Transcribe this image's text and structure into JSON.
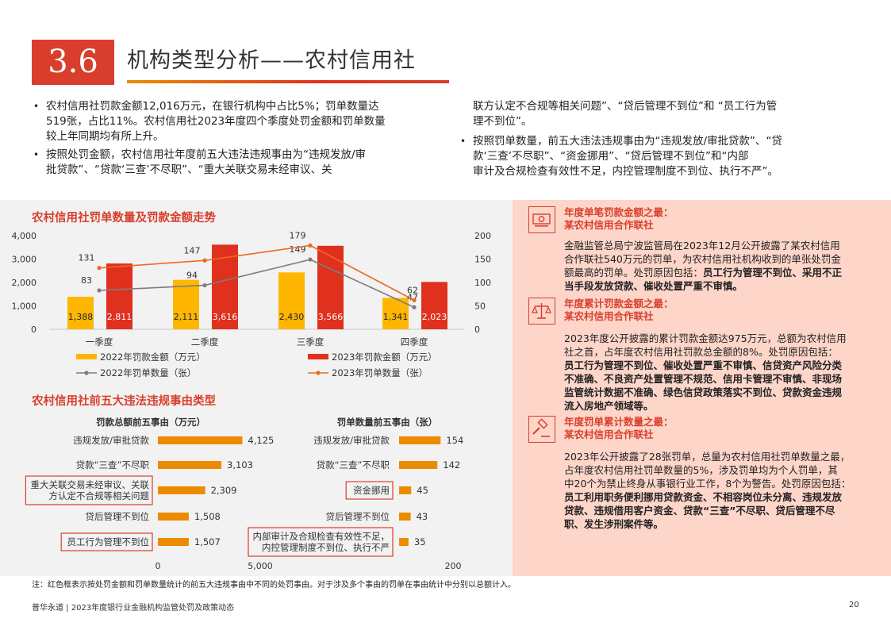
{
  "header": {
    "section_number": "3.6",
    "title": "机构类型分析——农村信用社"
  },
  "intro": {
    "left_bullets": [
      {
        "lines": [
          "农村信用社罚款金额12,016万元，在银行机构中占比5%；罚单数量达",
          "519张，占比11%。农村信用社2023年度四个季度处罚金额和罚单数量",
          "较上年同期均有所上升。"
        ]
      },
      {
        "lines": [
          "按照处罚金额，农村信用社年度前五大违法违规事由为“违规发放/审",
          "批贷款”、“贷款‘三查’不尽职”、“重大关联交易未经审议、关"
        ]
      }
    ],
    "right_continuation": [
      "联方认定不合规等相关问题”、“贷后管理不到位”和 “员工行为管",
      "理不到位”。"
    ],
    "right_bullets": [
      {
        "lines": [
          "按照罚单数量，前五大违法违规事由为“违规发放/审批贷款”、“贷",
          "款‘三查’不尽职”、“资金挪用”、“贷后管理不到位”和“内部",
          "审计及合规检查有效性不足，内控管理制度不到位、执行不严”。"
        ]
      }
    ]
  },
  "chart_data": [
    {
      "type": "bar",
      "title": "农村信用社罚单数量及罚款金额走势",
      "categories": [
        "一季度",
        "二季度",
        "三季度",
        "四季度"
      ],
      "y_left_ticks": [
        "4,000",
        "3,000",
        "2,000",
        "1,000",
        "0"
      ],
      "y_right_ticks": [
        "200",
        "150",
        "100",
        "50",
        "0"
      ],
      "ylim_left": [
        0,
        4000
      ],
      "ylim_right": [
        0,
        200
      ],
      "bar_series": [
        {
          "name": "2022年罚款金额（万元）",
          "color": "#ffb600",
          "values": [
            1388,
            2111,
            2430,
            1341
          ],
          "labels": [
            "1,388",
            "2,111",
            "2,430",
            "1,341"
          ]
        },
        {
          "name": "2023年罚款金额（万元）",
          "color": "#e0301e",
          "values": [
            2811,
            3616,
            3566,
            2023
          ],
          "labels": [
            "2,811",
            "3,616",
            "3,566",
            "2,023"
          ]
        }
      ],
      "line_series": [
        {
          "name": "2022年罚单数量（张）",
          "color": "#7d7d7d",
          "values": [
            83,
            94,
            149,
            47
          ]
        },
        {
          "name": "2023年罚单数量（张）",
          "color": "#eb6a1e",
          "values": [
            131,
            147,
            179,
            62
          ]
        }
      ],
      "legend": "bottom"
    },
    {
      "type": "bar",
      "title": "罚款总额前五事由（万元）",
      "orientation": "horizontal",
      "color": "#eb8c00",
      "categories": [
        "违规发放/审批贷款",
        "贷款“三查”不尽职",
        "重大关联交易未经审议、关联方认定不合规等相关问题",
        "贷后管理不到位",
        "员工行为管理不到位"
      ],
      "category_lines": [
        [
          "违规发放/审批贷款"
        ],
        [
          "贷款“三查”不尽职"
        ],
        [
          "重大关联交易未经审议、关联",
          "方认定不合规等相关问题"
        ],
        [
          "贷后管理不到位"
        ],
        [
          "员工行为管理不到位"
        ]
      ],
      "boxed": [
        false,
        false,
        true,
        false,
        true
      ],
      "values": [
        4125,
        3103,
        2309,
        1508,
        1507
      ],
      "labels": [
        "4,125",
        "3,103",
        "2,309",
        "1,508",
        "1,507"
      ],
      "xlim": [
        0,
        5000
      ],
      "x_ticks": [
        "0",
        "5,000"
      ]
    },
    {
      "type": "bar",
      "title": "罚单数量前五事由（张）",
      "orientation": "horizontal",
      "color": "#eb8c00",
      "categories": [
        "违规发放/审批贷款",
        "贷款“三查”不尽职",
        "资金挪用",
        "贷后管理不到位",
        "内部审计及合规检查有效性不足，内控管理制度不到位、执行不严"
      ],
      "category_lines": [
        [
          "违规发放/审批贷款"
        ],
        [
          "贷款“三查”不尽职"
        ],
        [
          "资金挪用"
        ],
        [
          "贷后管理不到位"
        ],
        [
          "内部审计及合规检查有效性不足，",
          "内控管理制度不到位、执行不严"
        ]
      ],
      "boxed": [
        false,
        false,
        true,
        false,
        true
      ],
      "values": [
        154,
        142,
        45,
        43,
        35
      ],
      "labels": [
        "154",
        "142",
        "45",
        "43",
        "35"
      ],
      "xlim": [
        0,
        200
      ],
      "x_ticks": [
        "200"
      ]
    }
  ],
  "hbar_section_title": "农村信用社前五大违法违规事由类型",
  "right_panel": {
    "sections": [
      {
        "icon": "money-icon",
        "heading": [
          "年度单笔罚款金额之最：",
          "某农村信用合作联社"
        ],
        "body_lines": [
          {
            "text": "金融监管总局宁波监管局在2023年12月公开披露了某农村信用",
            "bold": ""
          },
          {
            "text": "合作联社540万元的罚单，为农村信用社机构收到的单张处罚金",
            "bold": ""
          },
          {
            "text": "额最高的罚单。处罚原因包括：",
            "bold": "员工行为管理不到位、采用不正"
          },
          {
            "text": "",
            "bold": "当手段发放贷款、催收处置严重不审慎。"
          }
        ]
      },
      {
        "icon": "balance-scale-icon",
        "heading": [
          "年度累计罚款金额之最：",
          "某农村信用合作联社"
        ],
        "body_lines": [
          {
            "text": "2023年度公开披露的累计罚款金额达975万元，总额为农村信用",
            "bold": ""
          },
          {
            "text": "社之首，占年度农村信用社罚款总金额的8%。处罚原因包括：",
            "bold": ""
          },
          {
            "text": "",
            "bold": "员工行为管理不到位、催收处置严重不审慎、信贷资产风险分类"
          },
          {
            "text": "",
            "bold": "不准确、不良资产处置管理不规范、信用卡管理不审慎、非现场"
          },
          {
            "text": "",
            "bold": "监管统计数据不准确、绿色信贷政策落实不到位、贷款资金违规"
          },
          {
            "text": "",
            "bold": "流入房地产领域等。"
          }
        ]
      },
      {
        "icon": "gavel-icon",
        "heading": [
          "年度罚单累计数量之最：",
          "某农村信用合作联社"
        ],
        "body_lines": [
          {
            "text": "2023年公开披露了28张罚单，总量为农村信用社罚单数量之最，",
            "bold": ""
          },
          {
            "text": "占年度农村信用社罚单数量的5%，涉及罚单均为个人罚单，其",
            "bold": ""
          },
          {
            "text": "中20个为禁止终身从事银行业工作，8个为警告。处罚原因包括：",
            "bold": ""
          },
          {
            "text": "",
            "bold": "员工利用职务便利挪用贷款资金、不相容岗位未分离、违规发放"
          },
          {
            "text": "",
            "bold": "贷款、违规借用客户资金、贷款“三查”不尽职、贷后管理不尽"
          },
          {
            "text": "",
            "bold": "职、发生涉刑案件等。"
          }
        ]
      }
    ]
  },
  "footnote": "注：红色框表示按处罚金额和罚单数量统计的前五大违规事由中不同的处罚事由。对于涉及多个事由的罚单在事由统计中分别以总额计入。",
  "footer": {
    "text": "普华永道 | 2023年度银行业金融机构监管处罚及政策动态",
    "page": "20"
  }
}
